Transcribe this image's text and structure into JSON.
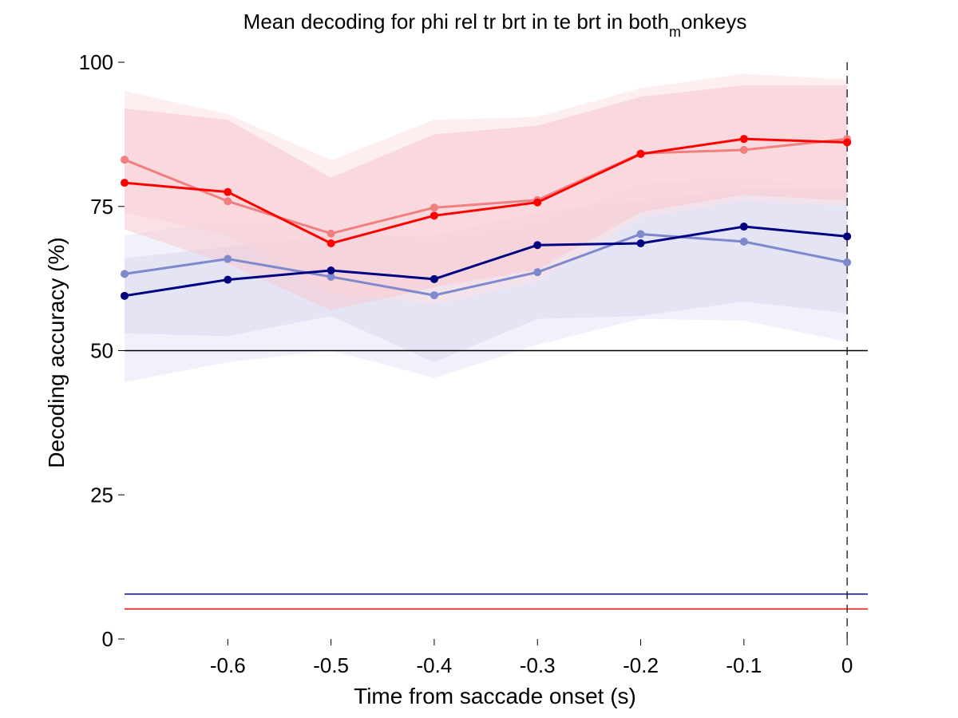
{
  "chart_data": {
    "type": "line",
    "title": {
      "prefix": "Mean decoding for phi rel tr brt in te brt in  both",
      "subscript": "m",
      "suffix": "onkeys"
    },
    "xlabel": "Time from saccade onset (s)",
    "ylabel": "Decoding accuracy (%)",
    "xlim": [
      -0.7,
      0.02
    ],
    "ylim": [
      0,
      100
    ],
    "x_ticks": [
      -0.6,
      -0.5,
      -0.4,
      -0.3,
      -0.2,
      -0.1,
      0
    ],
    "x_tick_labels": [
      "-0.6",
      "-0.5",
      "-0.4",
      "-0.3",
      "-0.2",
      "-0.1",
      "0"
    ],
    "y_ticks": [
      0,
      25,
      50,
      75,
      100
    ],
    "y_tick_labels": [
      "0",
      "25",
      "50",
      "75",
      "100"
    ],
    "grid": false,
    "legend": "none",
    "x": [
      -0.7,
      -0.6,
      -0.5,
      -0.4,
      -0.3,
      -0.2,
      -0.1,
      0
    ],
    "series": [
      {
        "color": "#8088cc",
        "band_color": "#e6e6f8",
        "values": [
          63.3,
          65.9,
          62.8,
          59.6,
          63.6,
          70.2,
          68.9,
          65.3
        ],
        "band_upper": [
          70.0,
          72.5,
          71.0,
          69.0,
          72.0,
          79.0,
          80.0,
          78.0
        ],
        "band_lower": [
          44.5,
          48.0,
          50.0,
          45.3,
          51.0,
          55.5,
          55.2,
          51.5
        ]
      },
      {
        "color": "#000080",
        "band_color": "#d8d8f0",
        "values": [
          59.5,
          62.3,
          63.9,
          62.4,
          68.3,
          68.6,
          71.5,
          69.8
        ],
        "band_upper": [
          66.0,
          68.0,
          70.0,
          70.0,
          74.0,
          76.0,
          78.0,
          78.0
        ],
        "band_lower": [
          53.0,
          52.5,
          56.0,
          48.0,
          55.5,
          56.0,
          58.5,
          56.5
        ]
      },
      {
        "color": "#f08080",
        "band_color": "#fbe0e4",
        "values": [
          83.1,
          75.9,
          70.3,
          74.8,
          76.1,
          84.2,
          84.8,
          86.7
        ],
        "band_upper": [
          95.0,
          91.0,
          83.0,
          90.0,
          90.5,
          95.5,
          98.0,
          97.0
        ],
        "band_lower": [
          74.0,
          70.0,
          60.0,
          58.0,
          62.0,
          73.0,
          76.0,
          75.0
        ]
      },
      {
        "color": "#ff0000",
        "band_color": "#f8c8d0",
        "values": [
          79.1,
          77.5,
          68.6,
          73.4,
          75.7,
          84.1,
          86.7,
          86.1
        ],
        "band_upper": [
          92.0,
          90.0,
          80.0,
          87.5,
          89.0,
          94.0,
          96.0,
          96.0
        ],
        "band_lower": [
          71.0,
          65.0,
          57.0,
          61.0,
          64.0,
          74.0,
          77.0,
          76.0
        ]
      }
    ],
    "reference_lines": [
      {
        "y": 50,
        "color": "#000000"
      },
      {
        "y": 7.8,
        "color": "#000080"
      },
      {
        "y": 5.2,
        "color": "#ff0000"
      }
    ],
    "event_line": {
      "x": 0,
      "color": "#000000",
      "style": "dashed"
    }
  }
}
